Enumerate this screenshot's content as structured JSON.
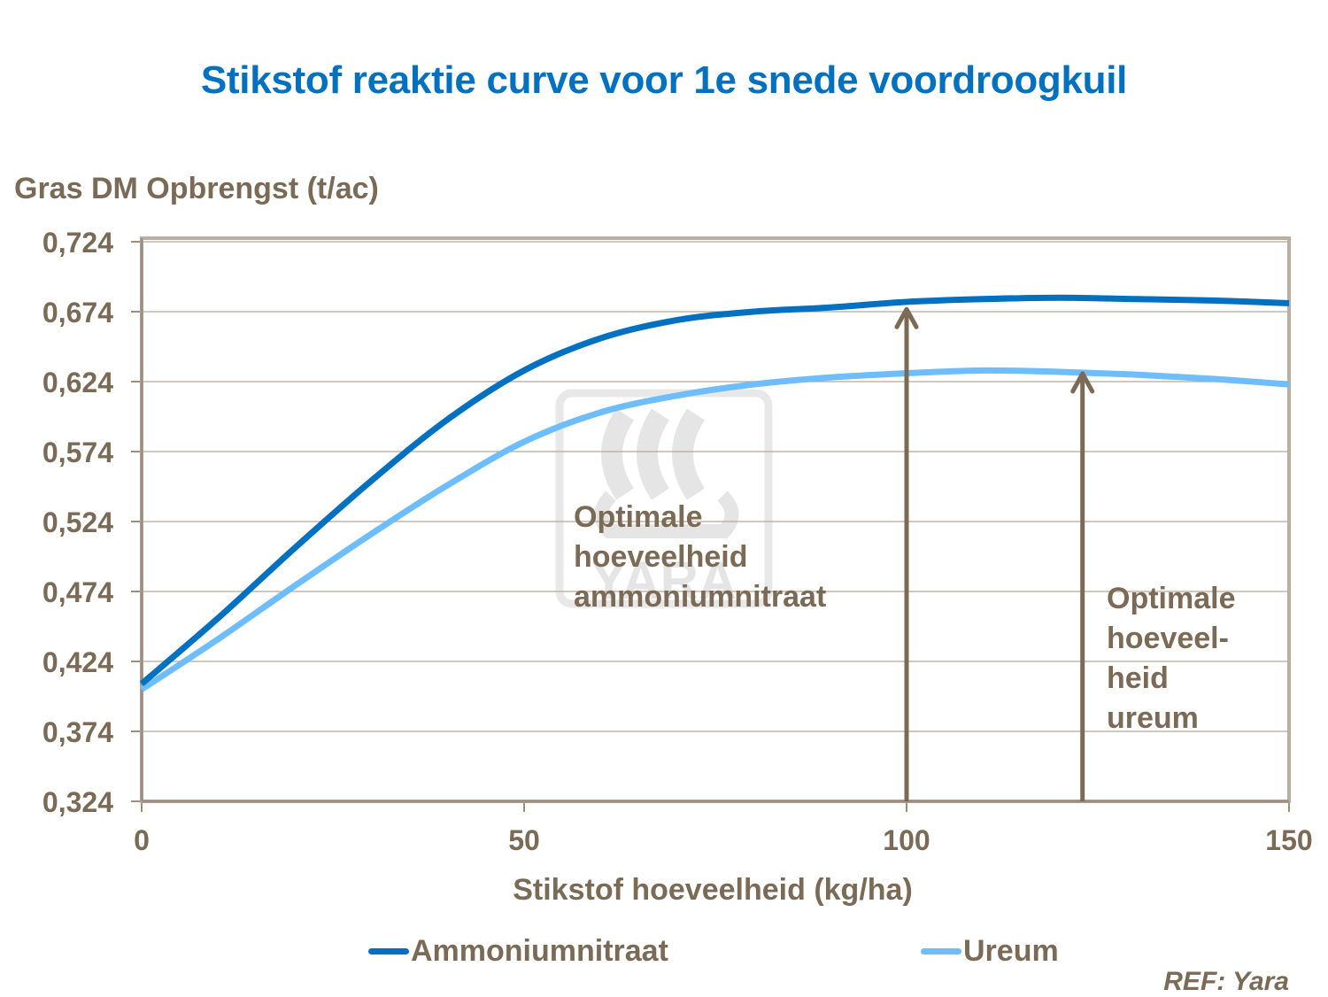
{
  "title": "Stikstof reaktie curve voor 1e snede voordroogkuil",
  "axes": {
    "ylabel": "Gras DM Opbrengst (t/ac)",
    "xlabel": "Stikstof hoeveelheid (kg/ha)",
    "yticks": [
      "0,724",
      "0,674",
      "0,624",
      "0,574",
      "0,524",
      "0,474",
      "0,424",
      "0,374",
      "0,324"
    ],
    "xticks": [
      "0",
      "50",
      "100",
      "150"
    ]
  },
  "legend": {
    "items": [
      {
        "label": "Ammoniumnitraat",
        "color": "#0070C0"
      },
      {
        "label": "Ureum",
        "color": "#6EBEFF"
      }
    ]
  },
  "annotations": {
    "ammonium": {
      "lines": [
        "Optimale",
        "hoeveelheid",
        "ammoniumnitraat"
      ],
      "x": 100
    },
    "urea": {
      "lines": [
        "Optimale",
        "hoeveel-",
        "heid",
        "ureum"
      ],
      "x": 123
    }
  },
  "reference": "REF: Yara",
  "colors": {
    "title": "#0070C0",
    "text": "#7B6A55",
    "ammonium": "#0070C0",
    "urea": "#6EBEFF",
    "grid": "#B8A898",
    "frame": "#BBAFA3"
  },
  "chart_data": {
    "type": "line",
    "title": "Stikstof reaktie curve voor 1e snede voordroogkuil",
    "xlabel": "Stikstof hoeveelheid (kg/ha)",
    "ylabel": "Gras DM Opbrengst (t/ac)",
    "x": [
      0,
      10,
      20,
      30,
      40,
      50,
      60,
      70,
      80,
      90,
      100,
      110,
      120,
      130,
      140,
      150
    ],
    "series": [
      {
        "name": "Ammoniumnitraat",
        "color": "#0070C0",
        "values": [
          0.408,
          0.455,
          0.505,
          0.553,
          0.597,
          0.632,
          0.655,
          0.668,
          0.674,
          0.677,
          0.681,
          0.683,
          0.684,
          0.683,
          0.682,
          0.68
        ]
      },
      {
        "name": "Ureum",
        "color": "#6EBEFF",
        "values": [
          0.404,
          0.44,
          0.478,
          0.515,
          0.55,
          0.581,
          0.602,
          0.614,
          0.622,
          0.627,
          0.63,
          0.632,
          0.631,
          0.629,
          0.626,
          0.622
        ]
      }
    ],
    "xlim": [
      0,
      150
    ],
    "ylim": [
      0.324,
      0.724
    ],
    "yticks": [
      0.324,
      0.374,
      0.424,
      0.474,
      0.524,
      0.574,
      0.624,
      0.674,
      0.724
    ],
    "xticks": [
      0,
      50,
      100,
      150
    ],
    "grid": true,
    "legend_position": "bottom",
    "annotations": [
      {
        "text": "Optimale hoeveelheid ammoniumnitraat",
        "type": "arrow",
        "x": 100,
        "y_to": 0.677
      },
      {
        "text": "Optimale hoeveelheid ureum",
        "type": "arrow",
        "x": 123,
        "y_to": 0.631
      }
    ]
  }
}
